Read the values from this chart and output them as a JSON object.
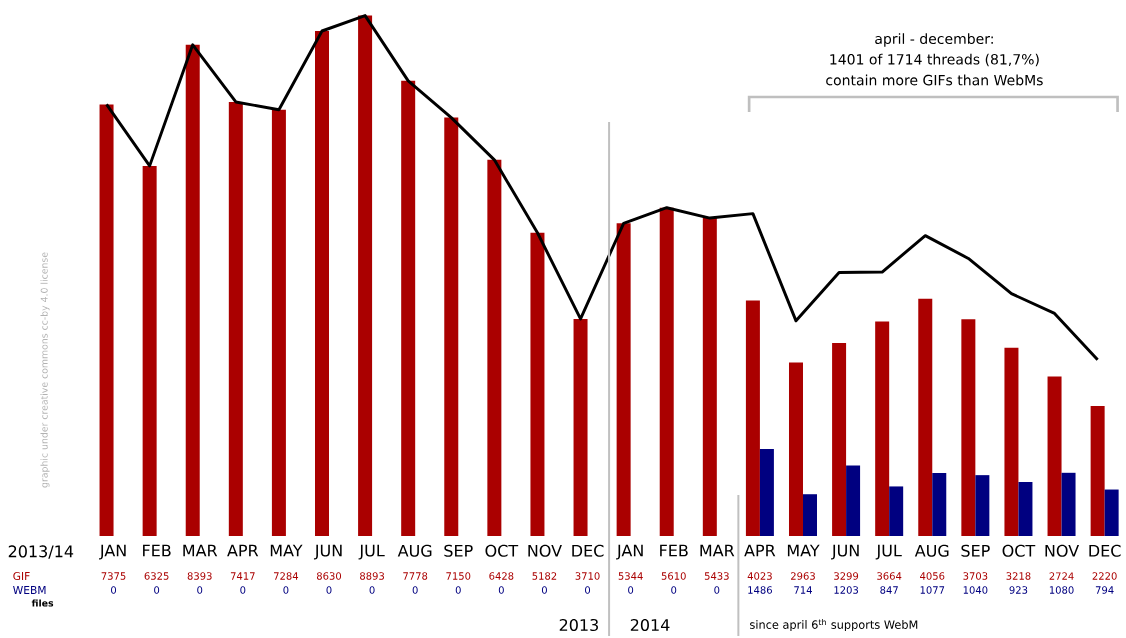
{
  "chart_data": {
    "type": "bar",
    "categories": [
      "JAN",
      "FEB",
      "MAR",
      "APR",
      "MAY",
      "JUN",
      "JUL",
      "AUG",
      "SEP",
      "OCT",
      "NOV",
      "DEC",
      "JAN",
      "FEB",
      "MAR",
      "APR",
      "MAY",
      "JUN",
      "JUL",
      "AUG",
      "SEP",
      "OCT",
      "NOV",
      "DEC"
    ],
    "series": [
      {
        "name": "GIF",
        "color": "#aa0000",
        "values": [
          7375,
          6325,
          8393,
          7417,
          7284,
          8630,
          8893,
          7778,
          7150,
          6428,
          5182,
          3710,
          5344,
          5610,
          5433,
          4023,
          2963,
          3299,
          3664,
          4056,
          3703,
          3218,
          2724,
          2220
        ],
        "value_labels": [
          "7375",
          "6325",
          "8393",
          "7417",
          "7284",
          "8630",
          "8893",
          "7778",
          "7150",
          "6428",
          "5182",
          "3710",
          "5344",
          "5610",
          "5433",
          "4023",
          "2963",
          "3299",
          "3664",
          "4056",
          "3703",
          "3218",
          "2724",
          "2220"
        ]
      },
      {
        "name": "WEBM",
        "color": "#000080",
        "values": [
          0,
          0,
          0,
          0,
          0,
          0,
          0,
          0,
          0,
          0,
          0,
          0,
          0,
          0,
          0,
          1486,
          714,
          1203,
          847,
          1077,
          1040,
          923,
          1080,
          794
        ],
        "value_labels": [
          "0",
          "0",
          "0",
          "0",
          "0",
          "0",
          "0",
          "0",
          "0",
          "0",
          "0",
          "0",
          "0",
          "0",
          "0",
          "1486",
          "714",
          "1203",
          "847",
          "1077",
          "1040",
          "923",
          "1080",
          "794"
        ]
      },
      {
        "type": "line",
        "color": "#000000",
        "values": [
          7375,
          6325,
          8393,
          7417,
          7284,
          8630,
          8893,
          7778,
          7150,
          6428,
          5182,
          3710,
          5344,
          5610,
          5433,
          5509,
          3677,
          4502,
          4511,
          5133,
          4743,
          4141,
          3804,
          3014
        ]
      }
    ],
    "annotations": [
      "april - december:",
      "1401 of 1714 threads (81,7%)",
      "contain more GIFs than WebMs",
      "2013/14",
      "files",
      "2013",
      "2014",
      "since april 6$^{th}$ supports WebM",
      "graphic under creative commons cc-by 4.0 license"
    ]
  }
}
